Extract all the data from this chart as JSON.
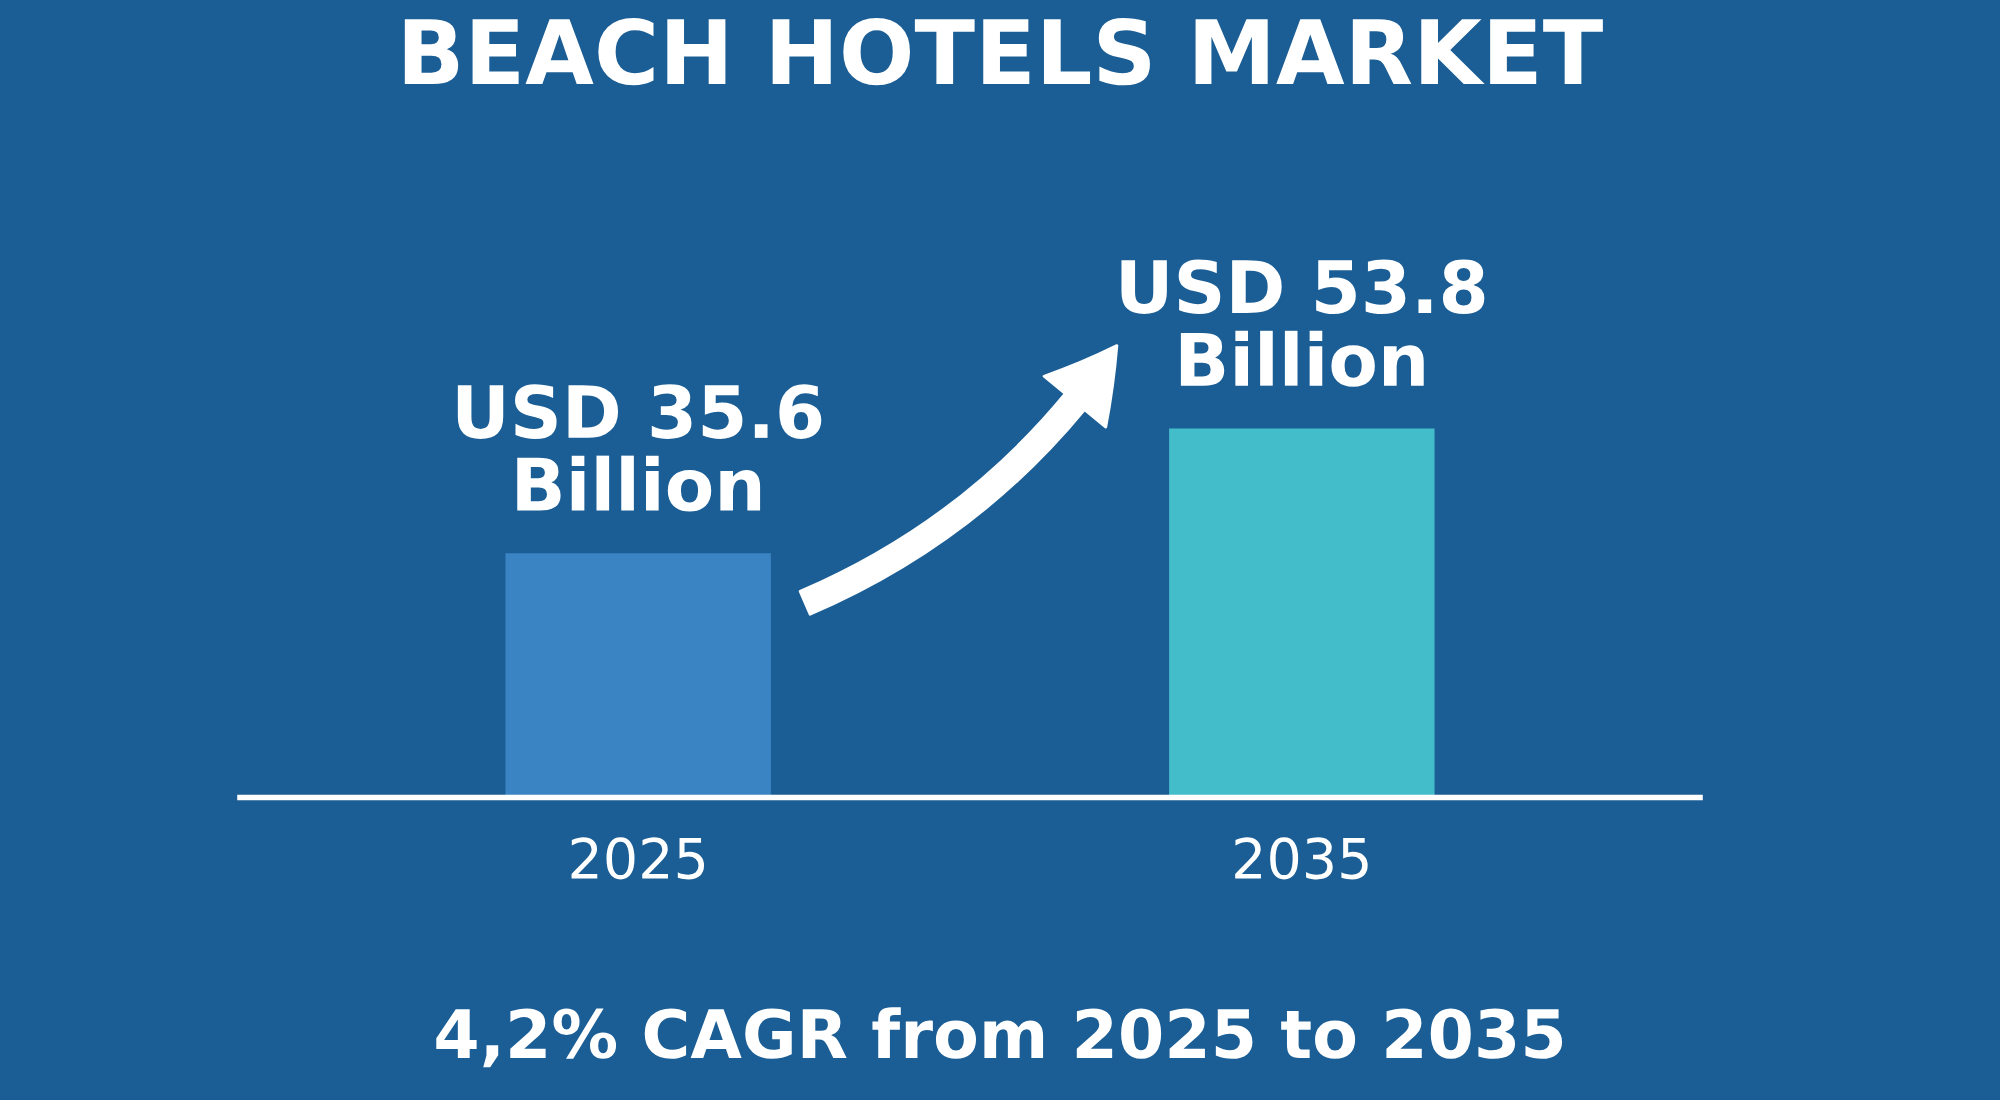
{
  "chart_data": {
    "type": "bar",
    "title": "BEACH HOTELS MARKET",
    "categories": [
      "2025",
      "2035"
    ],
    "values": [
      35.6,
      53.8
    ],
    "colors": [
      "#3a84c4",
      "#44bdcb"
    ],
    "value_labels": [
      "USD 35.6\nBillion",
      "USD 53.8\nBillion"
    ],
    "annotations": [
      "4,2% CAGR from 2025 to 2035"
    ],
    "grid": false,
    "legend": false
  }
}
